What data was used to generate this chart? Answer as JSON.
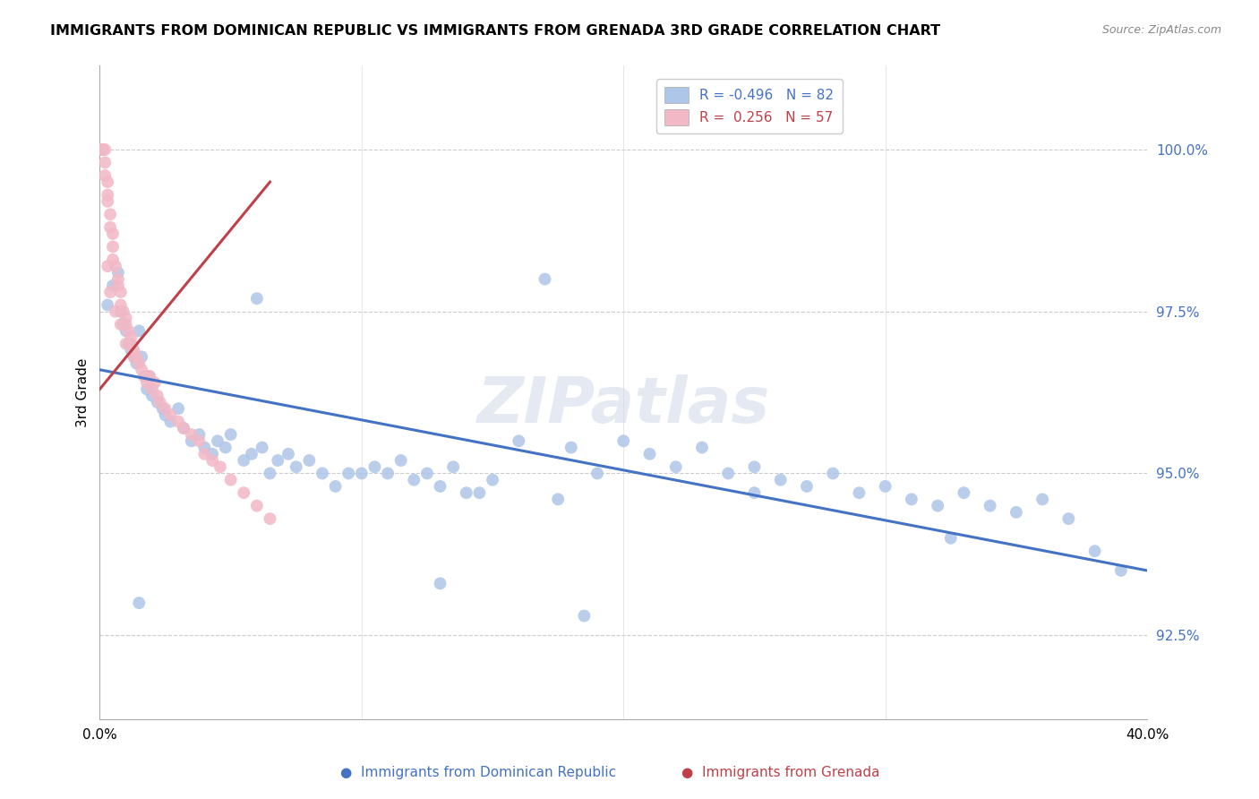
{
  "title": "IMMIGRANTS FROM DOMINICAN REPUBLIC VS IMMIGRANTS FROM GRENADA 3RD GRADE CORRELATION CHART",
  "source": "Source: ZipAtlas.com",
  "ylabel_label": "3rd Grade",
  "xmin": 0.0,
  "xmax": 0.4,
  "ymin": 91.2,
  "ymax": 101.3,
  "yticks": [
    92.5,
    95.0,
    97.5,
    100.0
  ],
  "ytick_labels": [
    "92.5%",
    "95.0%",
    "97.5%",
    "100.0%"
  ],
  "blue_color": "#aec6e8",
  "pink_color": "#f2b8c6",
  "blue_line_color": "#4472c4",
  "pink_line_color": "#c0404a",
  "watermark": "ZIPatlas",
  "blue_scatter_x": [
    0.003,
    0.005,
    0.007,
    0.008,
    0.009,
    0.01,
    0.011,
    0.012,
    0.013,
    0.014,
    0.015,
    0.016,
    0.017,
    0.018,
    0.019,
    0.02,
    0.022,
    0.024,
    0.025,
    0.027,
    0.03,
    0.032,
    0.035,
    0.038,
    0.04,
    0.043,
    0.045,
    0.048,
    0.05,
    0.055,
    0.058,
    0.062,
    0.065,
    0.068,
    0.072,
    0.075,
    0.08,
    0.085,
    0.09,
    0.095,
    0.1,
    0.105,
    0.11,
    0.115,
    0.12,
    0.125,
    0.13,
    0.135,
    0.14,
    0.15,
    0.16,
    0.17,
    0.18,
    0.19,
    0.2,
    0.21,
    0.22,
    0.23,
    0.24,
    0.25,
    0.26,
    0.27,
    0.28,
    0.29,
    0.3,
    0.31,
    0.32,
    0.33,
    0.34,
    0.35,
    0.36,
    0.37,
    0.38,
    0.39,
    0.175,
    0.145,
    0.06,
    0.25,
    0.015,
    0.13,
    0.185,
    0.325
  ],
  "blue_scatter_y": [
    97.6,
    97.9,
    98.1,
    97.5,
    97.3,
    97.2,
    97.0,
    96.9,
    96.8,
    96.7,
    97.2,
    96.8,
    96.5,
    96.3,
    96.5,
    96.2,
    96.1,
    96.0,
    95.9,
    95.8,
    96.0,
    95.7,
    95.5,
    95.6,
    95.4,
    95.3,
    95.5,
    95.4,
    95.6,
    95.2,
    95.3,
    95.4,
    95.0,
    95.2,
    95.3,
    95.1,
    95.2,
    95.0,
    94.8,
    95.0,
    95.0,
    95.1,
    95.0,
    95.2,
    94.9,
    95.0,
    94.8,
    95.1,
    94.7,
    94.9,
    95.5,
    98.0,
    95.4,
    95.0,
    95.5,
    95.3,
    95.1,
    95.4,
    95.0,
    95.1,
    94.9,
    94.8,
    95.0,
    94.7,
    94.8,
    94.6,
    94.5,
    94.7,
    94.5,
    94.4,
    94.6,
    94.3,
    93.8,
    93.5,
    94.6,
    94.7,
    97.7,
    94.7,
    93.0,
    93.3,
    92.8,
    94.0
  ],
  "pink_scatter_x": [
    0.001,
    0.001,
    0.001,
    0.001,
    0.002,
    0.002,
    0.002,
    0.003,
    0.003,
    0.003,
    0.004,
    0.004,
    0.005,
    0.005,
    0.005,
    0.006,
    0.007,
    0.007,
    0.008,
    0.008,
    0.009,
    0.01,
    0.01,
    0.011,
    0.012,
    0.012,
    0.013,
    0.014,
    0.015,
    0.016,
    0.017,
    0.018,
    0.019,
    0.02,
    0.021,
    0.022,
    0.023,
    0.025,
    0.027,
    0.03,
    0.032,
    0.035,
    0.038,
    0.04,
    0.043,
    0.046,
    0.05,
    0.055,
    0.06,
    0.065,
    0.003,
    0.004,
    0.006,
    0.008,
    0.01,
    0.013,
    0.018
  ],
  "pink_scatter_y": [
    100.0,
    100.0,
    100.0,
    100.0,
    100.0,
    99.8,
    99.6,
    99.5,
    99.3,
    99.2,
    99.0,
    98.8,
    98.7,
    98.5,
    98.3,
    98.2,
    98.0,
    97.9,
    97.8,
    97.6,
    97.5,
    97.4,
    97.3,
    97.2,
    97.1,
    97.0,
    96.9,
    96.8,
    96.7,
    96.6,
    96.5,
    96.4,
    96.5,
    96.3,
    96.4,
    96.2,
    96.1,
    96.0,
    95.9,
    95.8,
    95.7,
    95.6,
    95.5,
    95.3,
    95.2,
    95.1,
    94.9,
    94.7,
    94.5,
    94.3,
    98.2,
    97.8,
    97.5,
    97.3,
    97.0,
    96.8,
    96.5
  ],
  "blue_trend_x": [
    0.0,
    0.4
  ],
  "blue_trend_y": [
    96.6,
    93.5
  ],
  "pink_trend_x": [
    0.0,
    0.065
  ],
  "pink_trend_y": [
    96.3,
    99.5
  ],
  "legend_line1": "R = -0.496   N = 82",
  "legend_line2": "R =  0.256   N = 57",
  "bottom_label_blue": "Immigrants from Dominican Republic",
  "bottom_label_pink": "Immigrants from Grenada"
}
